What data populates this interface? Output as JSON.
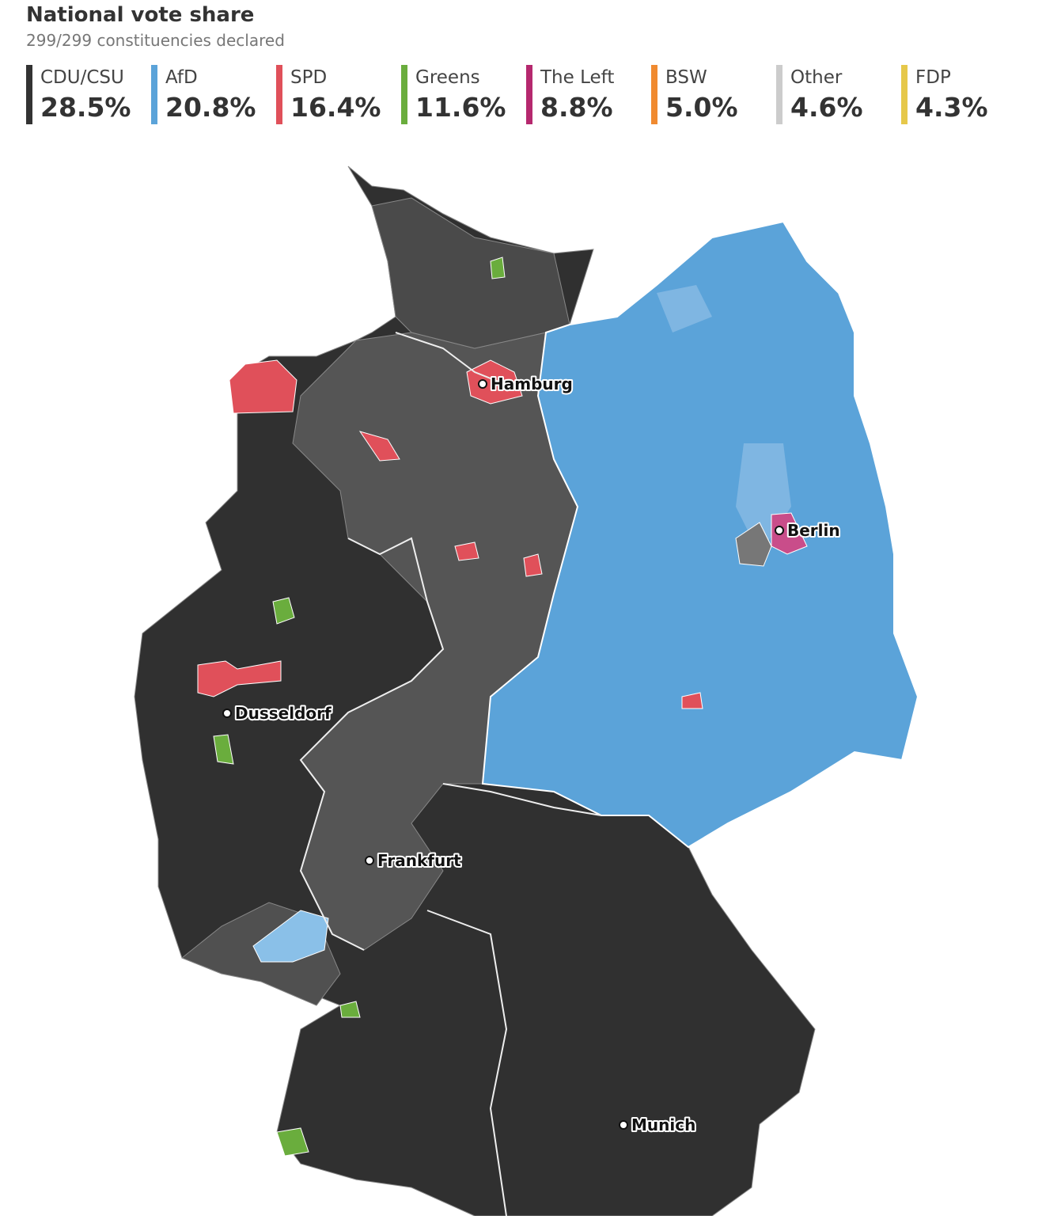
{
  "header": {
    "title": "National vote share",
    "subtitle": "299/299 constituencies declared"
  },
  "legend": [
    {
      "party": "CDU/CSU",
      "share": "28.5%",
      "color": "#333333"
    },
    {
      "party": "AfD",
      "share": "20.8%",
      "color": "#5ba3d9"
    },
    {
      "party": "SPD",
      "share": "16.4%",
      "color": "#e0505a"
    },
    {
      "party": "Greens",
      "share": "11.6%",
      "color": "#6aad3d"
    },
    {
      "party": "The Left",
      "share": "8.8%",
      "color": "#b5286e"
    },
    {
      "party": "BSW",
      "share": "5.0%",
      "color": "#f08a30"
    },
    {
      "party": "Other",
      "share": "4.6%",
      "color": "#cccccc"
    },
    {
      "party": "FDP",
      "share": "4.3%",
      "color": "#e6c84a"
    }
  ],
  "cities": [
    "Hamburg",
    "Berlin",
    "Dusseldorf",
    "Frankfurt",
    "Munich"
  ]
}
